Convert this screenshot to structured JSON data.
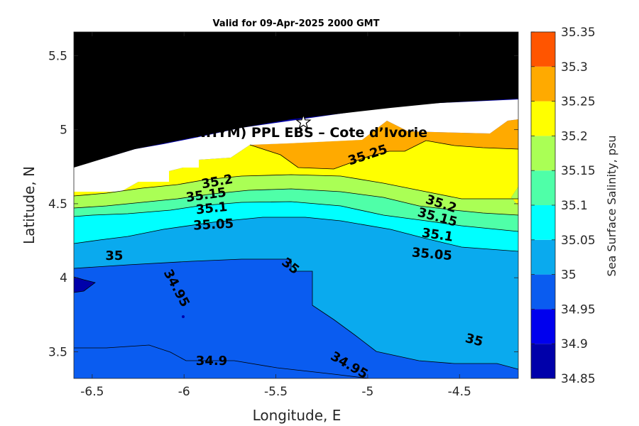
{
  "chart_data": {
    "type": "contour",
    "title": "Valid for 09-Apr-2025 2000 GMT",
    "xlabel": "Longitude, E",
    "ylabel": "Latitude, N",
    "xlim": [
      -6.6,
      -4.18
    ],
    "ylim": [
      3.32,
      5.66
    ],
    "xticks": [
      -6.5,
      -6,
      -5.5,
      -5,
      -4.5
    ],
    "yticks": [
      3.5,
      4,
      4.5,
      5,
      5.5
    ],
    "xtick_labels": [
      "-6.5",
      "-6",
      "-5.5",
      "-5",
      "-4.5"
    ],
    "ytick_labels": [
      "3.5",
      "4",
      "4.5",
      "5",
      "5.5"
    ],
    "colorbar": {
      "label": "Sea Surface Salinity, psu",
      "levels": [
        34.85,
        34.9,
        34.95,
        35,
        35.05,
        35.1,
        35.15,
        35.2,
        35.25,
        35.3,
        35.35
      ],
      "tick_labels": [
        "34.85",
        "34.9",
        "34.95",
        "35",
        "35.05",
        "35.1",
        "35.15",
        "35.2",
        "35.25",
        "35.3",
        "35.35"
      ],
      "colors": [
        "#0000aa",
        "#0000ee",
        "#0a5cf0",
        "#0aaaee",
        "#00ffff",
        "#4fffa8",
        "#aaff55",
        "#ffff00",
        "#ffaa00",
        "#ff5500"
      ]
    },
    "land_color": "#000000",
    "site": {
      "label": "A (ONHYM) PPL EBS  – Cote d’Ivorie",
      "lon": -5.35,
      "lat": 5.05,
      "marker": "star"
    },
    "contour_labels": [
      {
        "text": "35.25",
        "lon": -5.0,
        "lat": 4.83,
        "angle": -18
      },
      {
        "text": "35.2",
        "lon": -5.82,
        "lat": 4.65,
        "angle": -10
      },
      {
        "text": "35.15",
        "lon": -5.88,
        "lat": 4.56,
        "angle": -8
      },
      {
        "text": "35.1",
        "lon": -5.85,
        "lat": 4.47,
        "angle": -6
      },
      {
        "text": "35.05",
        "lon": -5.84,
        "lat": 4.36,
        "angle": -3
      },
      {
        "text": "35.2",
        "lon": -4.6,
        "lat": 4.5,
        "angle": 18
      },
      {
        "text": "35.15",
        "lon": -4.62,
        "lat": 4.41,
        "angle": 15
      },
      {
        "text": "35.1",
        "lon": -4.62,
        "lat": 4.29,
        "angle": 8
      },
      {
        "text": "35.05",
        "lon": -4.65,
        "lat": 4.16,
        "angle": 5
      },
      {
        "text": "35",
        "lon": -6.38,
        "lat": 4.15,
        "angle": 0
      },
      {
        "text": "35",
        "lon": -5.42,
        "lat": 4.08,
        "angle": 38
      },
      {
        "text": "34.95",
        "lon": -6.04,
        "lat": 3.93,
        "angle": 62
      },
      {
        "text": "35",
        "lon": -4.42,
        "lat": 3.58,
        "angle": 15
      },
      {
        "text": "34.9",
        "lon": -5.85,
        "lat": 3.44,
        "angle": 0
      },
      {
        "text": "34.95",
        "lon": -5.1,
        "lat": 3.41,
        "angle": 30
      }
    ]
  }
}
